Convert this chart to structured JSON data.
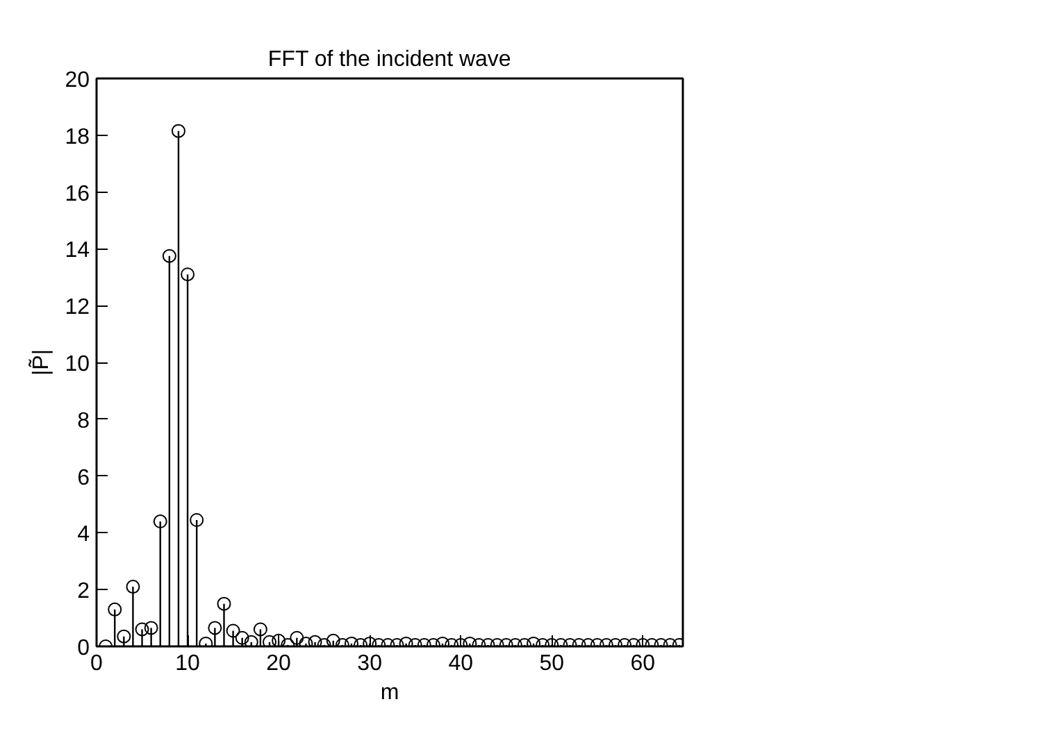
{
  "chart_data": {
    "type": "lollipop",
    "title": "FFT of the incident wave",
    "xlabel": "m",
    "ylabel": "|P̃|",
    "x": [
      1,
      2,
      3,
      4,
      5,
      6,
      7,
      8,
      9,
      10,
      11,
      12,
      13,
      14,
      15,
      16,
      17,
      18,
      19,
      20,
      21,
      22,
      23,
      24,
      25,
      26,
      27,
      28,
      29,
      30,
      31,
      32,
      33,
      34,
      35,
      36,
      37,
      38,
      39,
      40,
      41,
      42,
      43,
      44,
      45,
      46,
      47,
      48,
      49,
      50,
      51,
      52,
      53,
      54,
      55,
      56,
      57,
      58,
      59,
      60,
      61,
      62,
      63,
      64
    ],
    "values": [
      0,
      1.3,
      0.35,
      2.1,
      0.6,
      0.65,
      4.4,
      13.75,
      18.15,
      13.1,
      4.45,
      0.1,
      0.65,
      1.5,
      0.55,
      0.3,
      0.15,
      0.6,
      0.15,
      0.2,
      0.05,
      0.3,
      0.1,
      0.15,
      0.05,
      0.2,
      0.05,
      0.1,
      0.05,
      0.1,
      0.05,
      0.05,
      0.05,
      0.1,
      0.05,
      0.05,
      0.05,
      0.1,
      0.05,
      0.05,
      0.1,
      0.05,
      0.05,
      0.05,
      0.05,
      0.05,
      0.05,
      0.1,
      0.05,
      0.05,
      0.05,
      0.05,
      0.05,
      0.05,
      0.05,
      0.05,
      0.05,
      0.05,
      0.05,
      0.05,
      0.05,
      0.05,
      0.05,
      0.05
    ],
    "color": "#000000",
    "marker": "circle",
    "xlim": [
      0,
      64.4
    ],
    "ylim": [
      0,
      20
    ],
    "xticks": [
      0,
      10,
      20,
      30,
      40,
      50,
      60
    ],
    "yticks": [
      0,
      2,
      4,
      6,
      8,
      10,
      12,
      14,
      16,
      18,
      20
    ],
    "grid": false
  }
}
